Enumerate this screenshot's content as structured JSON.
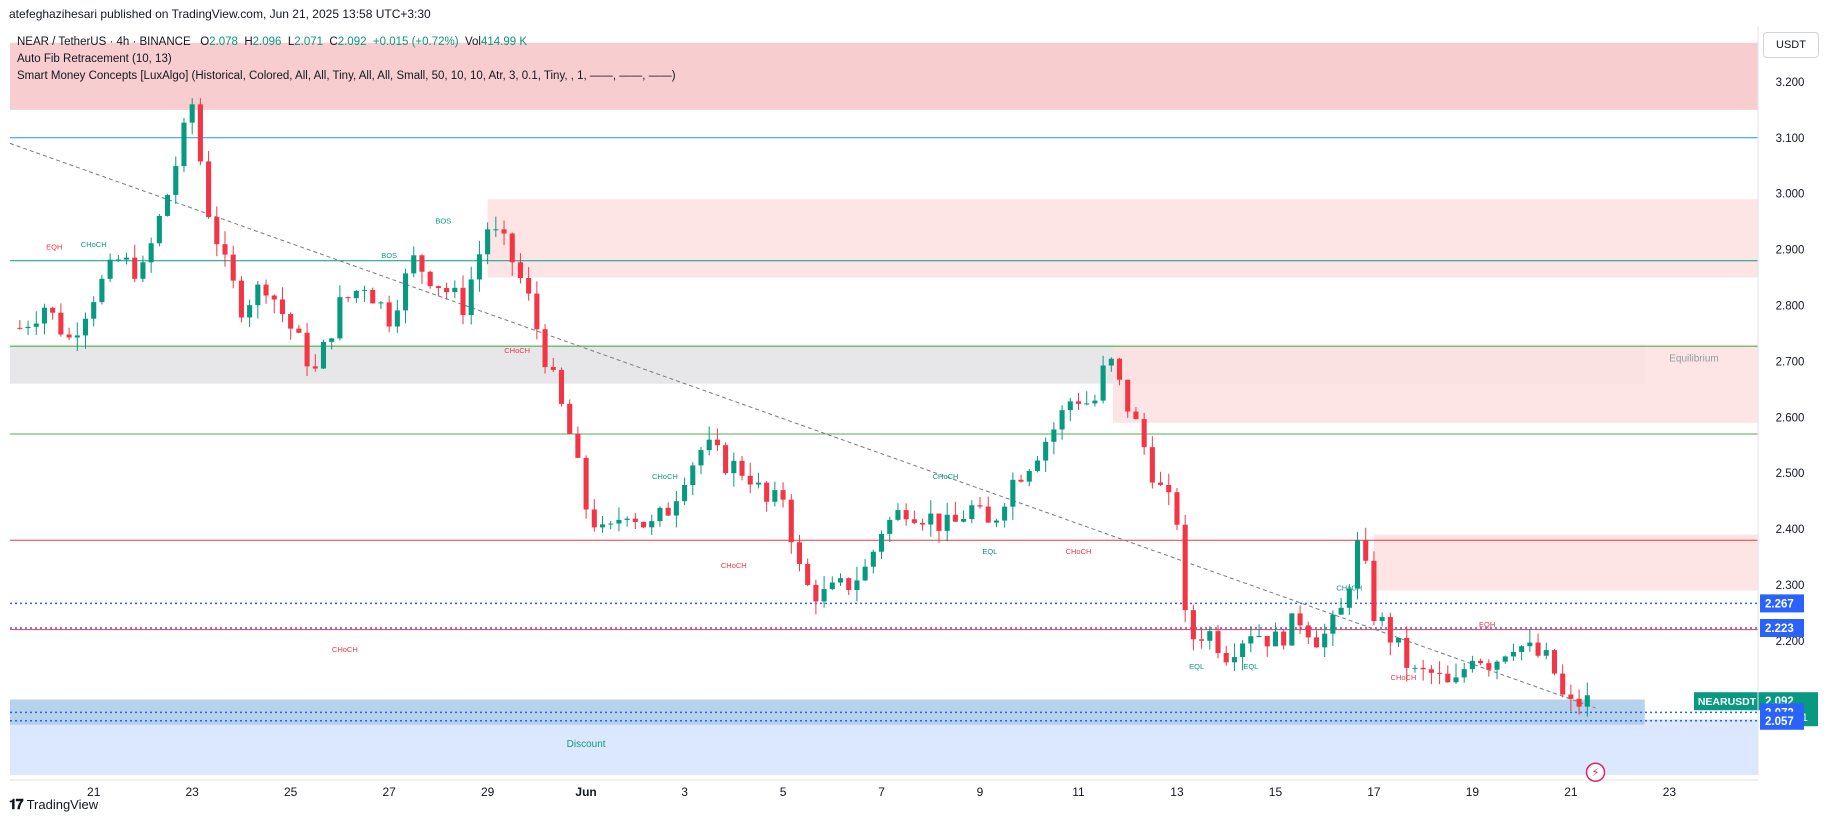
{
  "header": {
    "credit": "atefeghazihesari published on TradingView.com, Jun 21, 2025 13:58 UTC+3:30"
  },
  "legend": {
    "symbol": "NEAR / TetherUS · 4h · BINANCE",
    "o_label": "O",
    "o_value": "2.078",
    "h_label": "H",
    "h_value": "2.096",
    "l_label": "L",
    "l_value": "2.071",
    "c_label": "C",
    "c_value": "2.092",
    "change": "+0.015 (+0.72%)",
    "vol_label": "Vol",
    "vol_value": "414.99 K",
    "indicator1": "Auto Fib Retracement (10, 13)",
    "indicator2": "Smart Money Concepts [LuxAlgo] (Historical, Colored, All, All, Tiny, All, All, Small, 50, 10, 10, Atr, 3, 0.1, Tiny, , 1, ——, ——, ——)"
  },
  "currency": "USDT",
  "brand": {
    "logo": "𝟏𝟕",
    "name": "TradingView"
  },
  "chart_data": {
    "type": "candlestick",
    "pair": "NEARUSDT",
    "timeframe": "4h",
    "y_range": [
      1.96,
      3.3
    ],
    "y_ticks": [
      2.2,
      2.3,
      2.4,
      2.5,
      2.6,
      2.7,
      2.8,
      2.9,
      3.0,
      3.1,
      3.2
    ],
    "y_tick_labels": [
      "2.200",
      "2.300",
      "2.400",
      "2.500",
      "2.600",
      "2.700",
      "2.800",
      "2.900",
      "3.000",
      "3.100",
      "3.200"
    ],
    "x_range_days": [
      19.3,
      24.8
    ],
    "x_ticks": [
      {
        "day": 21,
        "label": "21"
      },
      {
        "day": 23,
        "label": "23"
      },
      {
        "day": 25,
        "label": "25"
      },
      {
        "day": 27,
        "label": "27"
      },
      {
        "day": 29,
        "label": "29"
      },
      {
        "day": 31,
        "label": "Jun"
      },
      {
        "day": 33,
        "label": "3"
      },
      {
        "day": 35,
        "label": "5"
      },
      {
        "day": 37,
        "label": "7"
      },
      {
        "day": 39,
        "label": "9"
      },
      {
        "day": 41,
        "label": "11"
      },
      {
        "day": 43,
        "label": "13"
      },
      {
        "day": 45,
        "label": "15"
      },
      {
        "day": 47,
        "label": "17"
      },
      {
        "day": 49,
        "label": "19"
      },
      {
        "day": 51,
        "label": "21"
      },
      {
        "day": 53,
        "label": "23"
      }
    ],
    "close_path": [
      [
        19.5,
        2.76
      ],
      [
        20.0,
        2.8
      ],
      [
        20.5,
        2.74
      ],
      [
        21.0,
        2.82
      ],
      [
        21.5,
        2.88
      ],
      [
        22.0,
        2.86
      ],
      [
        22.5,
        3.0
      ],
      [
        23.0,
        3.16
      ],
      [
        23.3,
        2.98
      ],
      [
        23.7,
        2.86
      ],
      [
        24.0,
        2.8
      ],
      [
        24.5,
        2.84
      ],
      [
        25.0,
        2.76
      ],
      [
        25.5,
        2.68
      ],
      [
        26.0,
        2.8
      ],
      [
        26.5,
        2.84
      ],
      [
        27.0,
        2.78
      ],
      [
        27.5,
        2.88
      ],
      [
        28.0,
        2.84
      ],
      [
        28.5,
        2.8
      ],
      [
        29.0,
        2.94
      ],
      [
        29.4,
        2.9
      ],
      [
        29.8,
        2.82
      ],
      [
        30.2,
        2.7
      ],
      [
        30.7,
        2.56
      ],
      [
        31.0,
        2.44
      ],
      [
        31.4,
        2.38
      ],
      [
        31.8,
        2.44
      ],
      [
        32.3,
        2.4
      ],
      [
        32.7,
        2.44
      ],
      [
        33.0,
        2.5
      ],
      [
        33.4,
        2.55
      ],
      [
        33.8,
        2.52
      ],
      [
        34.3,
        2.5
      ],
      [
        34.7,
        2.44
      ],
      [
        35.0,
        2.46
      ],
      [
        35.4,
        2.3
      ],
      [
        35.8,
        2.28
      ],
      [
        36.3,
        2.3
      ],
      [
        36.7,
        2.33
      ],
      [
        37.0,
        2.4
      ],
      [
        37.5,
        2.44
      ],
      [
        38.0,
        2.42
      ],
      [
        38.4,
        2.4
      ],
      [
        38.8,
        2.44
      ],
      [
        39.2,
        2.4
      ],
      [
        39.6,
        2.48
      ],
      [
        40.0,
        2.52
      ],
      [
        40.5,
        2.58
      ],
      [
        40.9,
        2.64
      ],
      [
        41.3,
        2.62
      ],
      [
        41.6,
        2.71
      ],
      [
        41.9,
        2.64
      ],
      [
        42.2,
        2.58
      ],
      [
        42.6,
        2.48
      ],
      [
        43.0,
        2.42
      ],
      [
        43.2,
        2.2
      ],
      [
        43.6,
        2.22
      ],
      [
        44.0,
        2.18
      ],
      [
        44.5,
        2.22
      ],
      [
        45.0,
        2.2
      ],
      [
        45.5,
        2.24
      ],
      [
        45.9,
        2.2
      ],
      [
        46.3,
        2.24
      ],
      [
        46.7,
        2.38
      ],
      [
        47.0,
        2.25
      ],
      [
        47.4,
        2.2
      ],
      [
        47.8,
        2.14
      ],
      [
        48.2,
        2.14
      ],
      [
        48.6,
        2.11
      ],
      [
        49.0,
        2.18
      ],
      [
        49.4,
        2.16
      ],
      [
        49.8,
        2.2
      ],
      [
        50.2,
        2.18
      ],
      [
        50.6,
        2.16
      ],
      [
        50.9,
        2.08
      ],
      [
        51.2,
        2.09
      ],
      [
        51.4,
        2.092
      ]
    ],
    "last_price": 2.092,
    "countdown": "01:31:31",
    "price_labels": [
      {
        "value": 2.267,
        "text": "2.267",
        "color": "#2962ff"
      },
      {
        "value": 2.223,
        "text": "2.223",
        "color": "#2962ff"
      },
      {
        "value": 2.092,
        "text": "2.092",
        "color": "#089981",
        "symbol": "NEARUSDT"
      },
      {
        "value": 2.072,
        "text": "2.072",
        "color": "#2962ff"
      },
      {
        "value": 2.057,
        "text": "2.057",
        "color": "#2962ff"
      }
    ],
    "zones": [
      {
        "name": "premium",
        "x0": 19.3,
        "x1": 54.8,
        "y0": 3.15,
        "y1": 3.27,
        "color": "#f7c4c7"
      },
      {
        "name": "supply",
        "x0": 29.0,
        "x1": 54.8,
        "y0": 2.85,
        "y1": 2.99,
        "color": "#fde0e1"
      },
      {
        "name": "equilibrium",
        "x0": 19.3,
        "x1": 52.5,
        "y0": 2.66,
        "y1": 2.73,
        "color": "#e3e3e6"
      },
      {
        "name": "supply2",
        "x0": 41.7,
        "x1": 54.8,
        "y0": 2.59,
        "y1": 2.73,
        "color": "#fde0e1"
      },
      {
        "name": "supply3",
        "x0": 47.0,
        "x1": 54.8,
        "y0": 2.29,
        "y1": 2.39,
        "color": "#fde0e1"
      },
      {
        "name": "discount",
        "x0": 19.3,
        "x1": 54.8,
        "y0": 1.96,
        "y1": 2.06,
        "color": "#d6e4ff"
      },
      {
        "name": "demand",
        "x0": 19.3,
        "x1": 52.5,
        "y0": 2.05,
        "y1": 2.095,
        "color": "#a9cbe8"
      }
    ],
    "h_lines": [
      {
        "value": 3.1,
        "color": "#2196f3"
      },
      {
        "value": 2.88,
        "color": "#089981"
      },
      {
        "value": 2.727,
        "color": "#4caf50"
      },
      {
        "value": 2.57,
        "color": "#4caf50"
      },
      {
        "value": 2.38,
        "color": "#f23645"
      },
      {
        "value": 2.22,
        "color": "#f23645"
      }
    ],
    "dotted_lines": [
      {
        "value": 2.267,
        "color": "#2962ff"
      },
      {
        "value": 2.223,
        "color": "#2962ff"
      },
      {
        "value": 2.072,
        "color": "#2962ff"
      },
      {
        "value": 2.057,
        "color": "#2962ff"
      }
    ],
    "trendline": {
      "x0": 19.3,
      "y0": 3.09,
      "x1": 51.5,
      "y1": 2.08
    },
    "annotations": [
      {
        "text": "EQH",
        "day": 20.2,
        "value": 2.9,
        "color": "#f23645"
      },
      {
        "text": "CHoCH",
        "day": 21.0,
        "value": 2.905,
        "color": "#089981"
      },
      {
        "text": "BOS",
        "day": 27.0,
        "value": 2.885,
        "color": "#089981"
      },
      {
        "text": "BOS",
        "day": 28.1,
        "value": 2.947,
        "color": "#089981"
      },
      {
        "text": "CHoCH",
        "day": 29.6,
        "value": 2.715,
        "color": "#f23645"
      },
      {
        "text": "CHoCH",
        "day": 26.1,
        "value": 2.18,
        "color": "#f23645"
      },
      {
        "text": "CHoCH",
        "day": 32.6,
        "value": 2.49,
        "color": "#089981"
      },
      {
        "text": "CHoCH",
        "day": 34.0,
        "value": 2.33,
        "color": "#f23645"
      },
      {
        "text": "CHoCH",
        "day": 38.3,
        "value": 2.49,
        "color": "#089981"
      },
      {
        "text": "EQL",
        "day": 39.2,
        "value": 2.355,
        "color": "#089981"
      },
      {
        "text": "CHoCH",
        "day": 41.0,
        "value": 2.355,
        "color": "#f23645"
      },
      {
        "text": "Equilibrium",
        "day": 53.5,
        "value": 2.7,
        "color": "#9598a1"
      },
      {
        "text": "CHoCH",
        "day": 46.5,
        "value": 2.29,
        "color": "#089981"
      },
      {
        "text": "EQH",
        "day": 49.3,
        "value": 2.225,
        "color": "#f23645"
      },
      {
        "text": "CHoCH",
        "day": 47.6,
        "value": 2.13,
        "color": "#f23645"
      },
      {
        "text": "EQL",
        "day": 43.4,
        "value": 2.15,
        "color": "#089981"
      },
      {
        "text": "EQL",
        "day": 44.5,
        "value": 2.15,
        "color": "#089981"
      },
      {
        "text": "Discount",
        "day": 31.0,
        "value": 2.01,
        "color": "#089981"
      }
    ]
  }
}
